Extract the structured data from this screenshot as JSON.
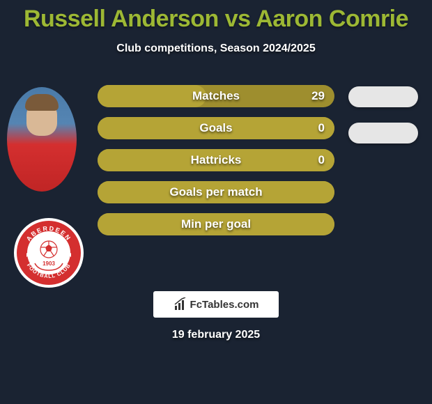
{
  "title": "Russell Anderson vs Aaron Comrie",
  "subtitle": "Club competitions, Season 2024/2025",
  "date": "19 february 2025",
  "brand": "FcTables.com",
  "colors": {
    "background": "#1a2332",
    "title": "#9db834",
    "bar_back": "#9e8e2e",
    "bar_fill": "#b5a436",
    "pill": "#e6e6e6",
    "text": "#ffffff"
  },
  "bars": [
    {
      "label": "Matches",
      "value": "29",
      "fill_pct": 46
    },
    {
      "label": "Goals",
      "value": "0",
      "fill_pct": 100
    },
    {
      "label": "Hattricks",
      "value": "0",
      "fill_pct": 100
    },
    {
      "label": "Goals per match",
      "value": "",
      "fill_pct": 100
    },
    {
      "label": "Min per goal",
      "value": "",
      "fill_pct": 100
    }
  ],
  "pills": [
    {
      "slot": 1
    },
    {
      "slot": 2
    }
  ],
  "badge": {
    "outer_text_top": "ABERDEEN",
    "outer_text_bottom": "FOOTBALL CLUB",
    "year": "1903",
    "outer_color": "#ffffff",
    "ring_color": "#d42f2f",
    "ring_text_color": "#ffffff"
  }
}
